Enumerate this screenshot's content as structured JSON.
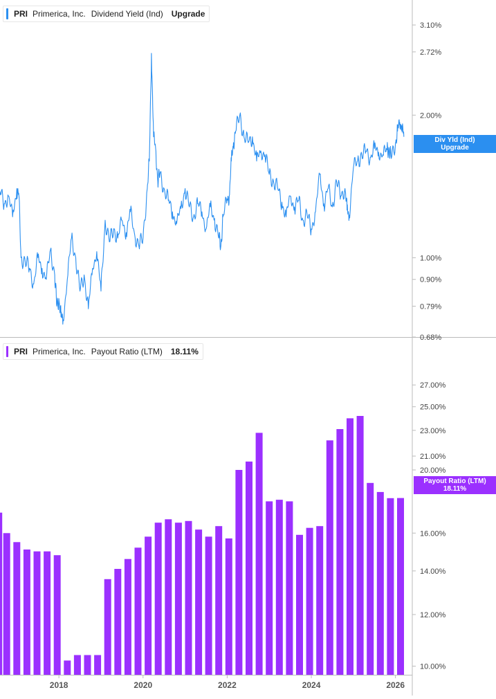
{
  "colors": {
    "yield_line": "#2b8ff0",
    "payout_bars": "#9b30ff",
    "axis": "#bbbbbb",
    "tick_text": "#444444"
  },
  "legend_top": {
    "ticker": "PRI",
    "company": "Primerica, Inc.",
    "metric": "Dividend Yield (Ind)",
    "value": "Upgrade"
  },
  "legend_bottom": {
    "ticker": "PRI",
    "company": "Primerica, Inc.",
    "metric": "Payout Ratio (LTM)",
    "value": "18.11%"
  },
  "tag_top": {
    "line1": "Div Yld (Ind)",
    "line2": "Upgrade"
  },
  "tag_bottom": {
    "line1": "Payout Ratio (LTM)",
    "line2": "18.11%"
  },
  "chart_data": [
    {
      "type": "line",
      "title": "Dividend Yield (Ind)",
      "scale": "log",
      "x_range": [
        2016.6,
        2026.4
      ],
      "ylim": [
        0.0068,
        0.035
      ],
      "y_ticks": [
        {
          "v": 0.031,
          "label": "3.10%"
        },
        {
          "v": 0.0272,
          "label": "2.72%"
        },
        {
          "v": 0.02,
          "label": "2.00%"
        },
        {
          "v": 0.01,
          "label": "1.00%"
        },
        {
          "v": 0.009,
          "label": "0.90%"
        },
        {
          "v": 0.0079,
          "label": "0.79%"
        },
        {
          "v": 0.0068,
          "label": "0.68%"
        }
      ],
      "series": [
        {
          "x": [
            2016.6,
            2016.7,
            2016.8,
            2016.9,
            2017.0,
            2017.05,
            2017.1,
            2017.2,
            2017.3,
            2017.4,
            2017.5,
            2017.6,
            2017.7,
            2017.8,
            2017.9,
            2017.95,
            2018.0,
            2018.05,
            2018.1,
            2018.2,
            2018.3,
            2018.4,
            2018.5,
            2018.6,
            2018.7,
            2018.8,
            2018.9,
            2019.0,
            2019.1,
            2019.2,
            2019.3,
            2019.4,
            2019.5,
            2019.6,
            2019.7,
            2019.8,
            2019.9,
            2020.0,
            2020.1,
            2020.15,
            2020.2,
            2020.25,
            2020.3,
            2020.35,
            2020.4,
            2020.5,
            2020.6,
            2020.7,
            2020.8,
            2020.9,
            2021.0,
            2021.1,
            2021.2,
            2021.3,
            2021.4,
            2021.5,
            2021.6,
            2021.7,
            2021.8,
            2021.85,
            2021.9,
            2022.0,
            2022.05,
            2022.1,
            2022.15,
            2022.2,
            2022.3,
            2022.4,
            2022.5,
            2022.6,
            2022.7,
            2022.8,
            2022.9,
            2023.0,
            2023.1,
            2023.2,
            2023.3,
            2023.4,
            2023.5,
            2023.6,
            2023.7,
            2023.8,
            2023.9,
            2024.0,
            2024.1,
            2024.2,
            2024.3,
            2024.4,
            2024.5,
            2024.6,
            2024.7,
            2024.8,
            2024.85,
            2024.9,
            2025.0,
            2025.1,
            2025.2,
            2025.3,
            2025.4,
            2025.5,
            2025.6,
            2025.7,
            2025.8,
            2025.85,
            2025.9,
            2026.0,
            2026.05,
            2026.1,
            2026.15,
            2026.2
          ],
          "y": [
            0.0138,
            0.013,
            0.0135,
            0.0122,
            0.014,
            0.0135,
            0.01,
            0.0098,
            0.0095,
            0.0088,
            0.01,
            0.0095,
            0.009,
            0.0104,
            0.0092,
            0.0079,
            0.0082,
            0.0075,
            0.0074,
            0.009,
            0.011,
            0.01,
            0.0085,
            0.0092,
            0.0078,
            0.0095,
            0.0103,
            0.0085,
            0.012,
            0.0108,
            0.0115,
            0.011,
            0.012,
            0.0113,
            0.0125,
            0.0112,
            0.0106,
            0.011,
            0.014,
            0.016,
            0.027,
            0.018,
            0.017,
            0.0145,
            0.015,
            0.014,
            0.0132,
            0.0125,
            0.0118,
            0.0127,
            0.014,
            0.0128,
            0.0122,
            0.013,
            0.0125,
            0.0115,
            0.0128,
            0.0121,
            0.011,
            0.0106,
            0.0122,
            0.0133,
            0.0135,
            0.016,
            0.0175,
            0.0185,
            0.02,
            0.018,
            0.0175,
            0.018,
            0.016,
            0.0168,
            0.0165,
            0.015,
            0.0145,
            0.014,
            0.0131,
            0.0122,
            0.0135,
            0.0128,
            0.0132,
            0.012,
            0.0123,
            0.0115,
            0.0125,
            0.015,
            0.013,
            0.014,
            0.0128,
            0.0145,
            0.0135,
            0.014,
            0.0126,
            0.0123,
            0.0155,
            0.016,
            0.0165,
            0.0168,
            0.0163,
            0.017,
            0.0167,
            0.0165,
            0.0169,
            0.017,
            0.0162,
            0.0175,
            0.0185,
            0.0193,
            0.019,
            0.018
          ]
        }
      ]
    },
    {
      "type": "bar",
      "title": "Payout Ratio (LTM)",
      "scale": "log",
      "x_range": [
        2016.6,
        2026.4
      ],
      "ylim": [
        0.097,
        0.295
      ],
      "y_ticks": [
        {
          "v": 0.27,
          "label": "27.00%"
        },
        {
          "v": 0.25,
          "label": "25.00%"
        },
        {
          "v": 0.23,
          "label": "23.00%"
        },
        {
          "v": 0.21,
          "label": "21.00%"
        },
        {
          "v": 0.2,
          "label": "20.00%"
        },
        {
          "v": 0.16,
          "label": "16.00%"
        },
        {
          "v": 0.14,
          "label": "14.00%"
        },
        {
          "v": 0.12,
          "label": "12.00%"
        },
        {
          "v": 0.1,
          "label": "10.00%"
        }
      ],
      "x_ticks": [
        {
          "v": 2018,
          "label": "2018"
        },
        {
          "v": 2020,
          "label": "2020"
        },
        {
          "v": 2022,
          "label": "2022"
        },
        {
          "v": 2024,
          "label": "2024"
        },
        {
          "v": 2026,
          "label": "2026"
        }
      ],
      "series": [
        {
          "x": [
            2016.57,
            2016.76,
            2017.0,
            2017.24,
            2017.48,
            2017.72,
            2017.96,
            2018.2,
            2018.44,
            2018.68,
            2018.92,
            2019.16,
            2019.4,
            2019.64,
            2019.88,
            2020.12,
            2020.36,
            2020.6,
            2020.84,
            2021.08,
            2021.32,
            2021.56,
            2021.8,
            2022.04,
            2022.28,
            2022.52,
            2022.76,
            2023.0,
            2023.24,
            2023.48,
            2023.72,
            2023.96,
            2024.2,
            2024.44,
            2024.68,
            2024.92,
            2025.16,
            2025.4,
            2025.64,
            2025.88,
            2026.12
          ],
          "y": [
            0.172,
            0.16,
            0.155,
            0.151,
            0.15,
            0.15,
            0.148,
            0.102,
            0.104,
            0.104,
            0.104,
            0.136,
            0.141,
            0.146,
            0.152,
            0.158,
            0.166,
            0.168,
            0.166,
            0.167,
            0.162,
            0.158,
            0.164,
            0.157,
            0.2,
            0.206,
            0.228,
            0.179,
            0.18,
            0.179,
            0.159,
            0.163,
            0.164,
            0.222,
            0.231,
            0.24,
            0.242,
            0.191,
            0.185,
            0.181,
            0.1811
          ]
        }
      ]
    }
  ]
}
